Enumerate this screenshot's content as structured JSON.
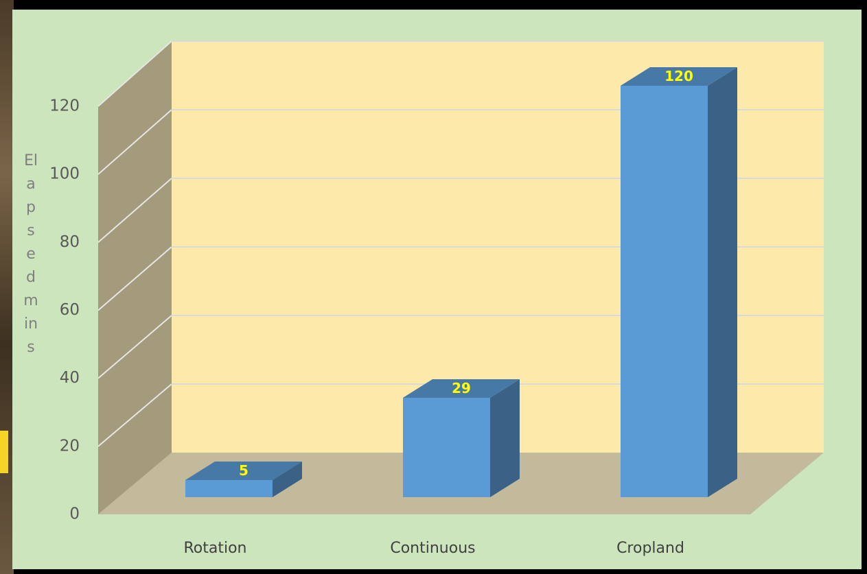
{
  "chart_data": {
    "type": "bar3d",
    "y_axis_label": "Elapsed mins",
    "categories": [
      "Rotation",
      "Continuous",
      "Cropland"
    ],
    "values": [
      5,
      29,
      120
    ],
    "color": "#5b9bd5",
    "ylim": [
      0,
      120
    ],
    "yticks": [
      0,
      20,
      40,
      60,
      80,
      100,
      120
    ],
    "grid": true,
    "data_labels": true
  }
}
